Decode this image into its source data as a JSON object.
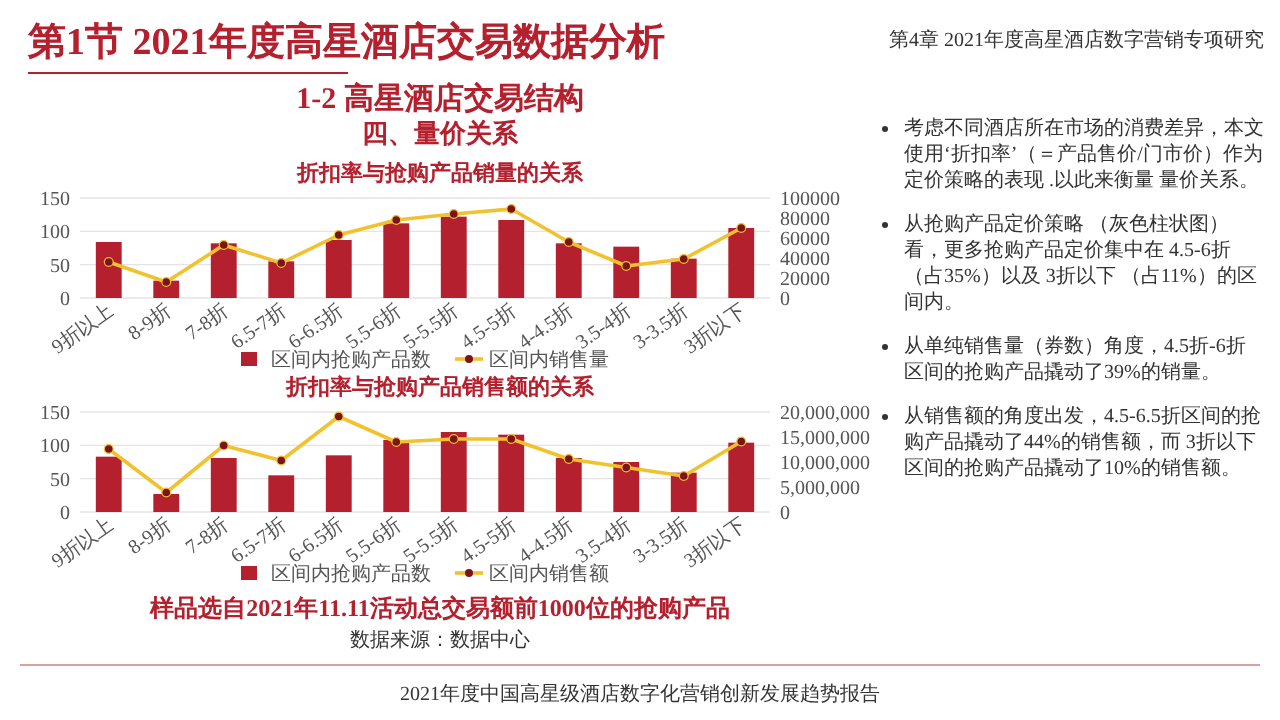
{
  "chart_data": [
    {
      "type": "other",
      "title": "第1节 2021年度高星酒店交易数据分析",
      "annotations": [
        "第4章 2021年度高星酒店数字营销专项研究",
        "1-2 高星酒店交易结构",
        "四、量价关系",
        "2021年度中国高星级酒店数字化营销创新发展趋势报告"
      ]
    },
    {
      "type": "bar",
      "title": "折扣率与抢购产品销量的关系",
      "categories": [
        "9折以上",
        "8-9折",
        "7-8折",
        "6.5-7折",
        "6-6.5折",
        "5.5-6折",
        "5-5.5折",
        "4.5-5折",
        "4-4.5折",
        "3.5-4折",
        "3-3.5折",
        "3折以下"
      ],
      "series": [
        {
          "name": "区间内抢购产品数",
          "color": "#b5202e",
          "values": [
            84,
            26,
            82,
            55,
            87,
            112,
            122,
            117,
            82,
            77,
            59,
            105
          ]
        },
        {
          "name": "区间内销售量",
          "type": "line",
          "axis": "y2",
          "color": "#f2c12e",
          "values": [
            36000,
            16000,
            53000,
            35000,
            63000,
            78000,
            84000,
            89000,
            56000,
            32000,
            39000,
            70000
          ]
        }
      ],
      "ylim": [
        0,
        150
      ],
      "yticks": [
        0,
        50,
        100,
        150
      ],
      "y2lim": [
        0,
        100000
      ],
      "y2ticks": [
        0,
        20000,
        40000,
        60000,
        80000,
        100000
      ],
      "grid": "y",
      "legend": "bottom",
      "marker": "circle"
    },
    {
      "type": "bar",
      "title": "折扣率与抢购产品销售额的关系",
      "categories": [
        "9折以上",
        "8-9折",
        "7-8折",
        "6.5-7折",
        "6-6.5折",
        "5.5-6折",
        "5-5.5折",
        "4.5-5折",
        "4-4.5折",
        "3.5-4折",
        "3-3.5折",
        "3折以下"
      ],
      "series": [
        {
          "name": "区间内抢购产品数",
          "color": "#b5202e",
          "values": [
            83,
            27,
            81,
            55,
            85,
            108,
            120,
            116,
            81,
            75,
            59,
            104
          ]
        },
        {
          "name": "区间内销售额",
          "type": "line",
          "axis": "y2",
          "color": "#f2c12e",
          "values": [
            12600000,
            3900000,
            13300000,
            10300000,
            19100000,
            14000000,
            14600000,
            14600000,
            10600000,
            8900000,
            7200000,
            14100000
          ]
        }
      ],
      "ylim": [
        0,
        150
      ],
      "yticks": [
        0,
        50,
        100,
        150
      ],
      "y2lim": [
        0,
        20000000
      ],
      "y2ticks": [
        0,
        {
          "value": 5000000,
          "label": "5,000,000"
        },
        {
          "value": 10000000,
          "label": "10,000,000"
        },
        {
          "value": 15000000,
          "label": "15,000,000"
        },
        {
          "value": 20000000,
          "label": "20,000,000"
        }
      ],
      "grid": "y",
      "legend": "bottom",
      "marker": "circle",
      "annotations": [
        "样品选自2021年11.11活动总交易额前1000位的抢购产品",
        "数据来源：数据中心"
      ]
    },
    {
      "type": "other",
      "annotations": [
        "考虑不同酒店所在市场的消费差异，本文使用‘折扣率’（＝产品售价/门市价）作为定价策略的表现 .以此来衡量 量价关系。",
        "从抢购产品定价策略 （灰色柱状图）看，更多抢购产品定价集中在 4.5-6折（占35%）以及 3折以下 （占11%）的区间内。",
        "从单纯销售量（券数）角度，4.5折-6折区间的抢购产品撬动了39%的销量。",
        "从销售额的角度出发，4.5-6.5折区间的抢购产品撬动了44%的销售额，而 3折以下区间的抢购产品撬动了10%的销售额。"
      ]
    }
  ]
}
